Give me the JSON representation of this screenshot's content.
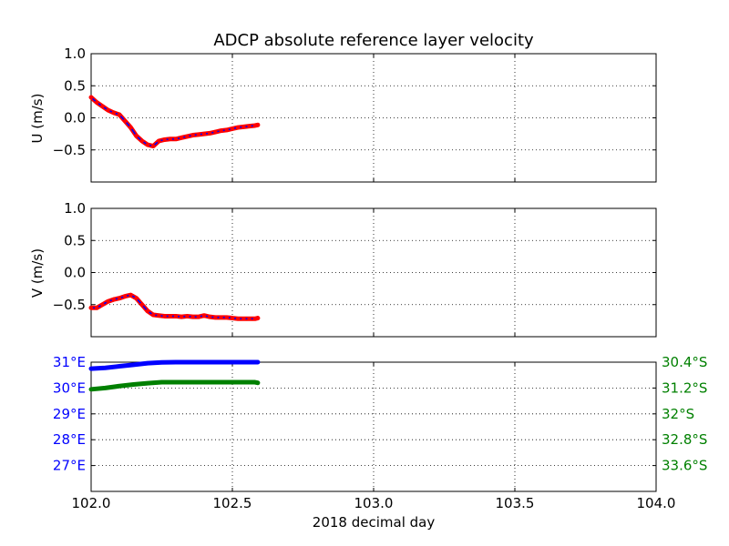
{
  "title": "ADCP absolute reference layer velocity",
  "xlabel": "2018 decimal day",
  "colors": {
    "marker": "#ff0000",
    "line": "#0000ff",
    "lon": "#0000ff",
    "lat": "#008000",
    "grid": "#000000"
  },
  "chart_data": [
    {
      "type": "line",
      "ylabel": "U (m/s)",
      "xlim": [
        102.0,
        104.0
      ],
      "ylim": [
        -1.0,
        1.0
      ],
      "yticks": [
        0.5,
        0.0,
        -0.5
      ],
      "ytick_labels": [
        "1.0",
        "0.5",
        "0.0",
        "−0.5"
      ],
      "ytick_values": [
        1.0,
        0.5,
        0.0,
        -0.5
      ],
      "grid": true,
      "series": [
        {
          "x": [
            102.0,
            102.02,
            102.04,
            102.06,
            102.08,
            102.1,
            102.12,
            102.14,
            102.16,
            102.18,
            102.2,
            102.22,
            102.24,
            102.26,
            102.28,
            102.3,
            102.32,
            102.34,
            102.36,
            102.38,
            102.4,
            102.42,
            102.44,
            102.46,
            102.48,
            102.5,
            102.52,
            102.54,
            102.56,
            102.58,
            102.59
          ],
          "y": [
            0.32,
            0.24,
            0.18,
            0.12,
            0.08,
            0.05,
            -0.05,
            -0.15,
            -0.28,
            -0.36,
            -0.42,
            -0.44,
            -0.36,
            -0.34,
            -0.33,
            -0.33,
            -0.31,
            -0.29,
            -0.27,
            -0.26,
            -0.25,
            -0.24,
            -0.22,
            -0.2,
            -0.19,
            -0.17,
            -0.15,
            -0.14,
            -0.13,
            -0.12,
            -0.11
          ]
        }
      ]
    },
    {
      "type": "line",
      "ylabel": "V (m/s)",
      "xlim": [
        102.0,
        104.0
      ],
      "ylim": [
        -1.0,
        1.0
      ],
      "ytick_labels": [
        "1.0",
        "0.5",
        "0.0",
        "−0.5"
      ],
      "ytick_values": [
        1.0,
        0.5,
        0.0,
        -0.5
      ],
      "grid": true,
      "series": [
        {
          "x": [
            102.0,
            102.02,
            102.04,
            102.06,
            102.08,
            102.1,
            102.12,
            102.14,
            102.16,
            102.18,
            102.2,
            102.22,
            102.24,
            102.26,
            102.28,
            102.3,
            102.32,
            102.34,
            102.36,
            102.38,
            102.4,
            102.42,
            102.44,
            102.46,
            102.48,
            102.5,
            102.52,
            102.54,
            102.56,
            102.58,
            102.59
          ],
          "y": [
            -0.55,
            -0.55,
            -0.5,
            -0.45,
            -0.42,
            -0.4,
            -0.37,
            -0.35,
            -0.4,
            -0.5,
            -0.6,
            -0.66,
            -0.67,
            -0.68,
            -0.68,
            -0.68,
            -0.69,
            -0.68,
            -0.69,
            -0.69,
            -0.67,
            -0.69,
            -0.7,
            -0.7,
            -0.7,
            -0.71,
            -0.72,
            -0.72,
            -0.72,
            -0.72,
            -0.71
          ]
        }
      ]
    },
    {
      "type": "line",
      "xlim": [
        102.0,
        104.0
      ],
      "xtick_labels": [
        "102.0",
        "102.5",
        "103.0",
        "103.5",
        "104.0"
      ],
      "xtick_values": [
        102.0,
        102.5,
        103.0,
        103.5,
        104.0
      ],
      "grid": true,
      "left_axis": {
        "ylim": [
          26.0,
          31.0
        ],
        "tick_labels": [
          "31°E",
          "30°E",
          "29°E",
          "28°E",
          "27°E"
        ],
        "tick_values": [
          31,
          30,
          29,
          28,
          27
        ]
      },
      "right_axis": {
        "ylim": [
          34.4,
          30.4
        ],
        "tick_labels": [
          "30.4°S",
          "31.2°S",
          "32°S",
          "32.8°S",
          "33.6°S"
        ],
        "tick_values": [
          30.4,
          31.2,
          32.0,
          32.8,
          33.6
        ]
      },
      "series": [
        {
          "axis": "left",
          "x": [
            102.0,
            102.05,
            102.1,
            102.15,
            102.2,
            102.25,
            102.3,
            102.35,
            102.4,
            102.45,
            102.5,
            102.55,
            102.59
          ],
          "y": [
            30.75,
            30.78,
            30.84,
            30.9,
            30.96,
            30.99,
            31.0,
            31.0,
            31.0,
            31.0,
            31.0,
            31.0,
            31.0
          ]
        },
        {
          "axis": "right",
          "x": [
            102.0,
            102.05,
            102.1,
            102.15,
            102.2,
            102.25,
            102.3,
            102.35,
            102.4,
            102.45,
            102.5,
            102.55,
            102.58,
            102.59
          ],
          "y": [
            31.24,
            31.2,
            31.14,
            31.09,
            31.05,
            31.02,
            31.02,
            31.02,
            31.02,
            31.02,
            31.02,
            31.02,
            31.02,
            31.04
          ]
        }
      ]
    }
  ]
}
